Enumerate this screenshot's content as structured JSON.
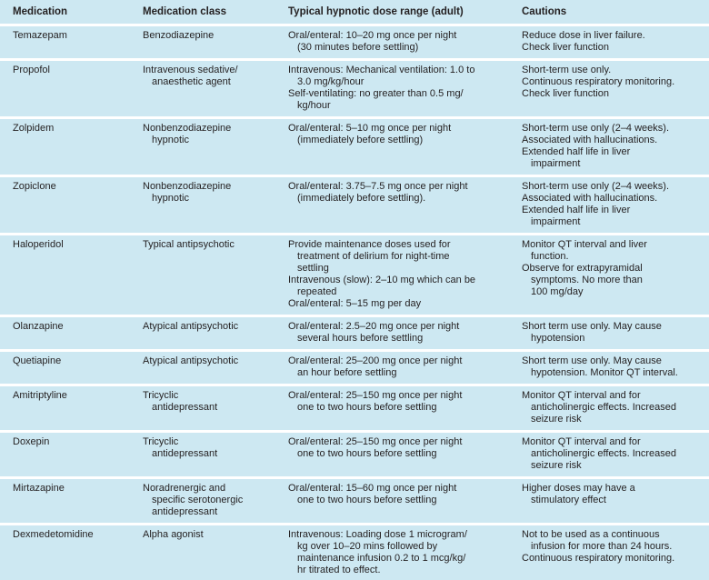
{
  "colors": {
    "table_bg": "#cde8f2",
    "row_divider": "#ffffff",
    "text": "#231f20"
  },
  "table": {
    "columns": [
      "Medication",
      "Medication class",
      "Typical hypnotic dose range (adult)",
      "Cautions"
    ],
    "rows": [
      {
        "medication": "Temazepam",
        "medication_class": [
          "Benzodiazepine"
        ],
        "dose_range": [
          "Oral/enteral: 10–20 mg once per night",
          "  (30 minutes before settling)"
        ],
        "cautions": [
          "Reduce dose in liver failure.",
          "Check liver function"
        ]
      },
      {
        "medication": "Propofol",
        "medication_class": [
          "Intravenous sedative/",
          "  anaesthetic agent"
        ],
        "dose_range": [
          "Intravenous: Mechanical ventilation: 1.0 to",
          "  3.0 mg/kg/hour",
          "Self-ventilating: no greater than 0.5 mg/",
          "  kg/hour"
        ],
        "cautions": [
          "Short-term use only.",
          "Continuous respiratory monitoring.",
          "Check liver function"
        ]
      },
      {
        "medication": "Zolpidem",
        "medication_class": [
          "Nonbenzodiazepine",
          "  hypnotic"
        ],
        "dose_range": [
          "Oral/enteral: 5–10 mg once per night",
          "  (immediately before settling)"
        ],
        "cautions": [
          "Short-term use only (2–4 weeks).",
          "Associated with hallucinations.",
          "Extended half life in liver",
          "  impairment"
        ]
      },
      {
        "medication": "Zopiclone",
        "medication_class": [
          "Nonbenzodiazepine",
          "  hypnotic"
        ],
        "dose_range": [
          "Oral/enteral: 3.75–7.5 mg once per night",
          "  (immediately before settling)."
        ],
        "cautions": [
          "Short-term use only (2–4 weeks).",
          "Associated with hallucinations.",
          "Extended half life in liver",
          "  impairment"
        ]
      },
      {
        "medication": "Haloperidol",
        "medication_class": [
          "Typical antipsychotic"
        ],
        "dose_range": [
          "Provide maintenance doses used for",
          "  treatment of delirium for night-time",
          "  settling",
          "Intravenous (slow): 2–10 mg which can be",
          "  repeated",
          "Oral/enteral: 5–15 mg per day"
        ],
        "cautions": [
          "Monitor QT interval and liver",
          "  function.",
          "Observe for extrapyramidal",
          "  symptoms. No more than",
          "  100 mg/day"
        ]
      },
      {
        "medication": "Olanzapine",
        "medication_class": [
          "Atypical antipsychotic"
        ],
        "dose_range": [
          "Oral/enteral: 2.5–20 mg once per night",
          "  several hours before settling"
        ],
        "cautions": [
          "Short term use only. May cause",
          "  hypotension"
        ]
      },
      {
        "medication": "Quetiapine",
        "medication_class": [
          "Atypical antipsychotic"
        ],
        "dose_range": [
          "Oral/enteral: 25–200 mg once per night",
          "  an hour before settling"
        ],
        "cautions": [
          "Short term use only. May cause",
          "  hypotension. Monitor QT interval."
        ]
      },
      {
        "medication": "Amitriptyline",
        "medication_class": [
          "Tricyclic",
          "  antidepressant"
        ],
        "dose_range": [
          "Oral/enteral: 25–150 mg once per night",
          "  one to two hours before settling"
        ],
        "cautions": [
          "Monitor QT interval and for",
          "  anticholinergic effects. Increased",
          "  seizure risk"
        ]
      },
      {
        "medication": "Doxepin",
        "medication_class": [
          "Tricyclic",
          "  antidepressant"
        ],
        "dose_range": [
          "Oral/enteral: 25–150 mg once per night",
          "  one to two hours before settling"
        ],
        "cautions": [
          "Monitor QT interval and for",
          "  anticholinergic effects. Increased",
          "  seizure risk"
        ]
      },
      {
        "medication": "Mirtazapine",
        "medication_class": [
          "Noradrenergic and",
          "  specific serotonergic",
          "  antidepressant"
        ],
        "dose_range": [
          "Oral/enteral: 15–60 mg once per night",
          "  one to two hours before settling"
        ],
        "cautions": [
          "Higher doses may have a",
          "  stimulatory effect"
        ]
      },
      {
        "medication": "Dexmedetomidine",
        "medication_class": [
          "Alpha agonist"
        ],
        "dose_range": [
          "Intravenous: Loading dose 1 microgram/",
          "  kg over 10–20 mins followed by",
          "  maintenance infusion 0.2 to 1 mcg/kg/",
          "  hr titrated to effect."
        ],
        "cautions": [
          "Not to be used as a continuous",
          "  infusion for more than 24 hours.",
          "Continuous respiratory monitoring."
        ]
      }
    ]
  }
}
